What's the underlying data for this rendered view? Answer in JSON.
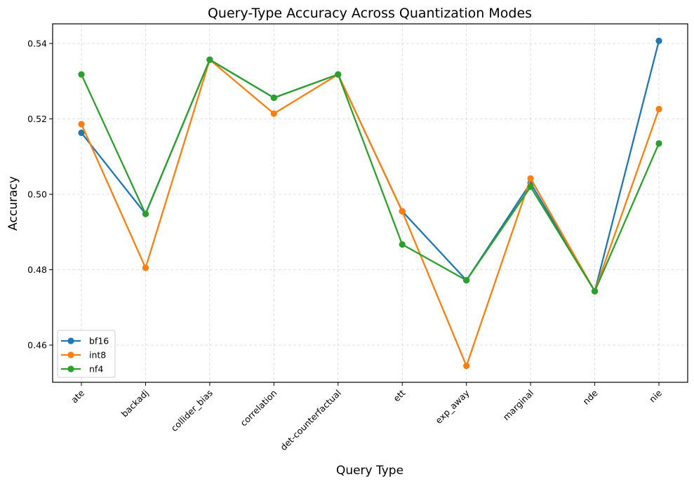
{
  "chart_data": {
    "type": "line",
    "title": "Query-Type Accuracy Across Quantization Modes",
    "xlabel": "Query Type",
    "ylabel": "Accuracy",
    "categories": [
      "ate",
      "backadj",
      "collider_bias",
      "correlation",
      "det-counterfactual",
      "ett",
      "exp_away",
      "marginal",
      "nde",
      "nie"
    ],
    "series": [
      {
        "name": "bf16",
        "color": "#1f77b4",
        "values": [
          0.5163,
          0.4948,
          0.5357,
          0.5256,
          0.5318,
          0.4955,
          0.4772,
          0.503,
          0.4743,
          0.5407
        ]
      },
      {
        "name": "int8",
        "color": "#ff7f0e",
        "values": [
          0.5186,
          0.4805,
          0.5357,
          0.5214,
          0.5318,
          0.4955,
          0.4545,
          0.5042,
          0.4743,
          0.5226
        ]
      },
      {
        "name": "nf4",
        "color": "#2ca02c",
        "values": [
          0.5318,
          0.4948,
          0.5357,
          0.5256,
          0.5318,
          0.4867,
          0.4772,
          0.502,
          0.4743,
          0.5135
        ]
      }
    ],
    "yticks": [
      "0.46",
      "0.48",
      "0.50",
      "0.52",
      "0.54"
    ],
    "ytick_values": [
      0.46,
      0.48,
      0.5,
      0.52,
      0.54
    ],
    "ylim": [
      0.4515,
      0.5455
    ],
    "grid": true,
    "legend_position": "lower left",
    "marker": "circle"
  }
}
